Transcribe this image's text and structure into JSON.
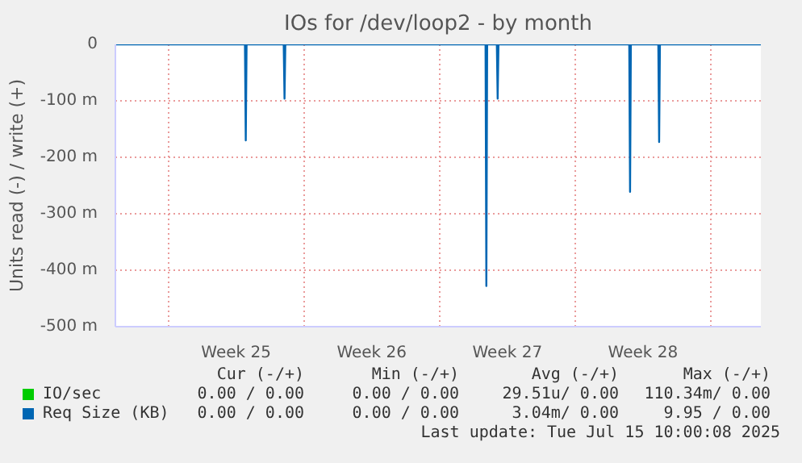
{
  "chart_data": {
    "type": "line",
    "title": "IOs for /dev/loop2 - by month",
    "ylabel": "Units read (-) / write (+)",
    "xlim": [
      "2025-06-13T06:30",
      "2025-07-16T14:00"
    ],
    "ylim": [
      -500,
      0
    ],
    "xticks": [
      {
        "value": "2025-06-16",
        "label": null
      },
      {
        "value": "2025-06-19T12:00",
        "label": "Week 25"
      },
      {
        "value": "2025-06-23",
        "label": null
      },
      {
        "value": "2025-06-26T12:00",
        "label": "Week 26"
      },
      {
        "value": "2025-06-30",
        "label": null
      },
      {
        "value": "2025-07-03T12:00",
        "label": "Week 27"
      },
      {
        "value": "2025-07-07",
        "label": null
      },
      {
        "value": "2025-07-10T12:00",
        "label": "Week 28"
      },
      {
        "value": "2025-07-14",
        "label": null
      }
    ],
    "yticks": [
      {
        "value": 0,
        "label": "0"
      },
      {
        "value": -100,
        "label": "-100 m"
      },
      {
        "value": -200,
        "label": "-200 m"
      },
      {
        "value": -300,
        "label": "-300 m"
      },
      {
        "value": -400,
        "label": "-400 m"
      },
      {
        "value": -500,
        "label": "-500 m"
      }
    ],
    "grid": true,
    "legend": "bottom",
    "series": [
      {
        "name": "IO/sec",
        "color": "#00cc00"
      },
      {
        "name": "Req Size (KB)",
        "color": "#0066b3",
        "x": [
          "2025-06-13T06:30",
          "2025-06-19T23:00",
          "2025-06-20T00:00",
          "2025-06-20T01:00",
          "2025-06-21T23:00",
          "2025-06-22T00:00",
          "2025-06-22T01:00",
          "2025-07-02T09:00",
          "2025-07-02T10:00",
          "2025-07-02T11:00",
          "2025-07-02T23:00",
          "2025-07-03T00:00",
          "2025-07-03T01:00",
          "2025-07-09T19:00",
          "2025-07-09T20:00",
          "2025-07-09T21:00",
          "2025-07-11T07:00",
          "2025-07-11T08:00",
          "2025-07-11T09:00",
          "2025-07-16T14:00"
        ],
        "values": [
          0,
          0,
          -170,
          0,
          0,
          -96,
          0,
          0,
          -428,
          0,
          0,
          -96,
          0,
          0,
          -261,
          0,
          0,
          -173,
          0,
          0
        ]
      }
    ],
    "annotations": [
      "Cur (-/+)",
      "Min (-/+)",
      "Avg (-/+)",
      "Max (-/+)",
      "0.00 / 0.00",
      "0.00 / 0.00",
      "29.51u/ 0.00",
      "110.34m/ 0.00",
      "0.00 / 0.00",
      "0.00 / 0.00",
      "3.04m/ 0.00",
      "9.95 / 0.00",
      "Last update: Tue Jul 15 10:00:08 2025"
    ]
  }
}
